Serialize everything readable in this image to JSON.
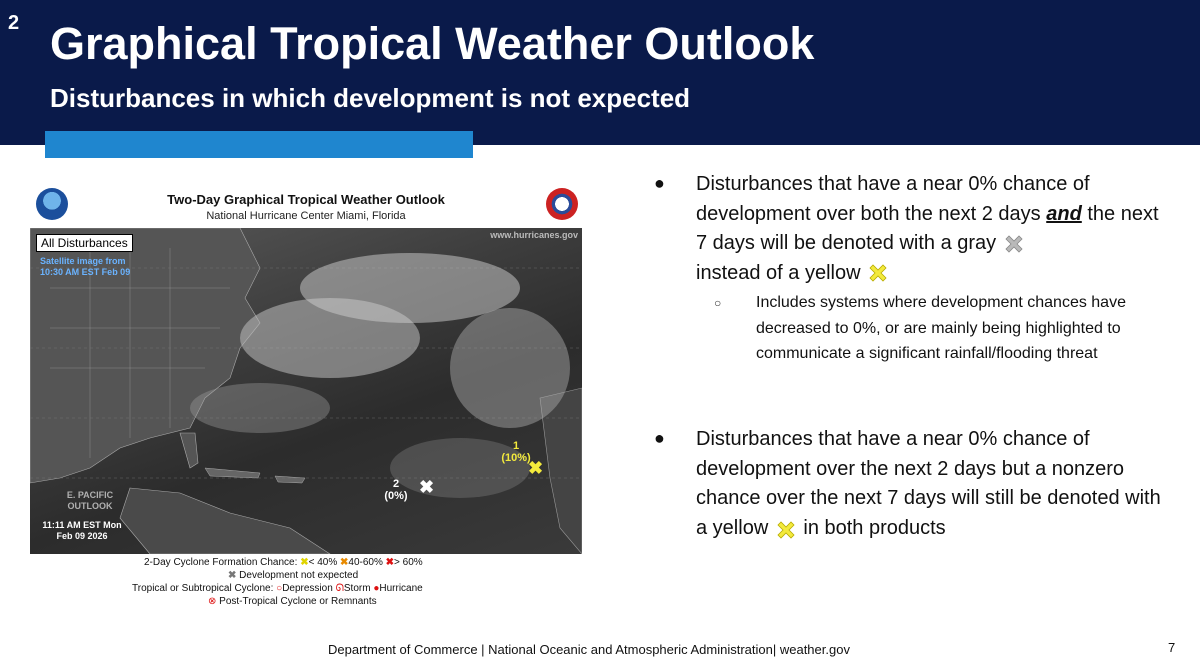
{
  "slide": {
    "number": "2",
    "title": "Graphical Tropical Weather Outlook",
    "subtitle": "Disturbances in which development is not expected"
  },
  "figure": {
    "title": "Two-Day Graphical Tropical Weather Outlook",
    "subtitle": "National Hurricane Center  Miami, Florida",
    "badge": "All Disturbances",
    "satellite_time": "Satellite image from 10:30 AM EST Feb 09",
    "url": "www.hurricanes.gov",
    "epac_label": "E. PACIFIC OUTLOOK",
    "epac_time": "11:11 AM EST Mon Feb 09 2026",
    "disturbances": [
      {
        "id": "1",
        "chance": "(10%)",
        "color": "#f3ea3c"
      },
      {
        "id": "2",
        "chance": "(0%)",
        "color": "#ffffff"
      }
    ],
    "legend": {
      "formation_label": "2-Day Cyclone Formation Chance:",
      "low": "< 40%",
      "mid": "40-60%",
      "high": "> 60%",
      "not_expected": "Development not expected",
      "cyclone_label": "Tropical or Subtropical Cyclone:",
      "depression": "Depression",
      "storm": "Storm",
      "hurricane": "Hurricane",
      "post_tropical": "Post-Tropical Cyclone or Remnants"
    }
  },
  "bullets": {
    "b1_part1": "Disturbances that have a near 0% chance of development over both the next 2 days ",
    "b1_and": "and",
    "b1_part2": " the next 7 days will be denoted with a gray ",
    "b1_part3": "instead of a yellow ",
    "sub1": "Includes systems where development chances have decreased to 0%, or are mainly being highlighted to communicate a significant rainfall/flooding threat",
    "b2_part1": "Disturbances that have a near 0% chance of development over the next 2 days but a nonzero chance over the next 7 days will still be denoted with a yellow ",
    "b2_part2": " in both products"
  },
  "footer": {
    "text": "Department of Commerce | National Oceanic and Atmospheric Administration| weather.gov",
    "page": "7"
  },
  "colors": {
    "header_bg": "#0a1a4a",
    "accent": "#1f86cf",
    "yellow_x": "#f3ea3c",
    "gray_x": "#b9b9b9"
  }
}
